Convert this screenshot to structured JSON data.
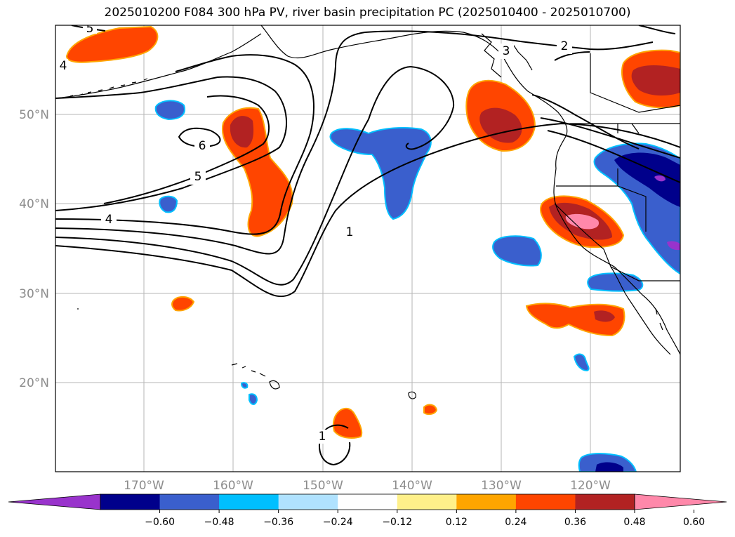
{
  "title": "2025010200 F084 300 hPa PV, river basin precipitation PC (2025010400 - 2025010700)",
  "map": {
    "lon_ticks": [
      "170°W",
      "160°W",
      "150°W",
      "140°W",
      "130°W",
      "120°W"
    ],
    "lat_ticks": [
      "50°N",
      "40°N",
      "30°N",
      "20°N"
    ],
    "gridlines": true,
    "pv_contour_labels": [
      "1",
      "1",
      "2",
      "3",
      "4",
      "4",
      "5",
      "5",
      "6"
    ]
  },
  "colorbar": {
    "colors": [
      "#9933cc",
      "#00008b",
      "#3a5fcd",
      "#00bfff",
      "#b0e2ff",
      "#ffffff",
      "#fff08a",
      "#ffa500",
      "#ff4500",
      "#b22222",
      "#ff88aa"
    ],
    "tick_labels": [
      "−0.60",
      "−0.48",
      "−0.36",
      "−0.24",
      "−0.12",
      "0.12",
      "0.24",
      "0.36",
      "0.48",
      "0.60"
    ],
    "extend": "both"
  }
}
